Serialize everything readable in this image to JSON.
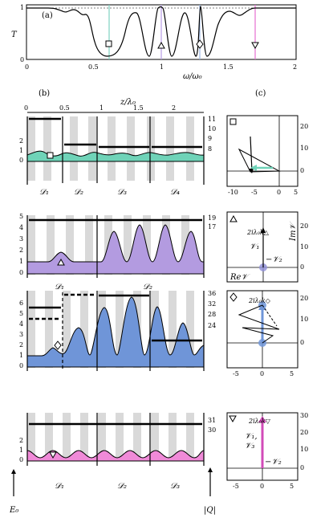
{
  "panel_a": {
    "label": "(a)",
    "ylabel": "T",
    "xlabel": "ω/ω₀",
    "y_ticks": [
      "0",
      "1"
    ],
    "x_ticks": [
      "0",
      "0.5",
      "1",
      "1.5",
      "2"
    ],
    "markers": [
      {
        "symbol": "square",
        "omega": 0.61,
        "color": "#7fd1c0"
      },
      {
        "symbol": "triangle-up",
        "omega": 1.0,
        "color": "#b79ce6"
      },
      {
        "symbol": "diamond",
        "omega": 1.23,
        "color": "#9bb8e6"
      },
      {
        "symbol": "triangle-down",
        "omega": 1.7,
        "color": "#e66fd0"
      }
    ]
  },
  "panel_b": {
    "label": "(b)",
    "top_axis_label": "z/λ₀",
    "top_ticks": [
      "0",
      "0.5",
      "1",
      "1.5",
      "2"
    ],
    "rows": [
      {
        "left_ticks": [
          "0",
          "1",
          "2"
        ],
        "right_ticks": [
          "8",
          "9",
          "10",
          "11"
        ],
        "segments": [
          "𝒟₁",
          "𝒟₂",
          "𝒟₃",
          "𝒟₄"
        ],
        "color": "#6fd3b8"
      },
      {
        "left_ticks": [
          "0",
          "1",
          "2",
          "3",
          "4",
          "5"
        ],
        "right_ticks": [
          "17",
          "19"
        ],
        "segments": [
          "𝒟₁",
          "𝒟₂"
        ],
        "color": "#b39be0"
      },
      {
        "left_ticks": [
          "0",
          "1",
          "2",
          "3",
          "4",
          "5",
          "6"
        ],
        "right_ticks": [
          "24",
          "28",
          "32",
          "36"
        ],
        "segments": [],
        "color": "#6f95d8"
      },
      {
        "left_ticks": [
          "0",
          "1",
          "2"
        ],
        "right_ticks": [
          "30",
          "31"
        ],
        "segments": [
          "𝒟₁",
          "𝒟₂",
          "𝒟₃"
        ],
        "color": "#f08ad8"
      }
    ],
    "bottom_left": "E₀",
    "bottom_right": "|Q|"
  },
  "panel_c": {
    "label": "(c)",
    "rows": [
      {
        "x_ticks": [
          "-10",
          "-5",
          "0",
          "5"
        ],
        "y_ticks": [
          "0",
          "10",
          "20"
        ]
      },
      {
        "y_ticks": [
          "0",
          "10",
          "20"
        ],
        "annotations": {
          "top": "2iλ₀k△",
          "v1": "𝒱₁",
          "v2": "−𝒱₂",
          "re": "Re𝒱",
          "im": "Im𝒱"
        }
      },
      {
        "x_ticks": [
          "-5",
          "0",
          "5"
        ],
        "y_ticks": [
          "0",
          "10",
          "20"
        ],
        "annotations": {
          "top": "2iλ₀k◇"
        }
      },
      {
        "x_ticks": [
          "-5",
          "0",
          "5"
        ],
        "y_ticks": [
          "0",
          "10",
          "20",
          "30"
        ],
        "annotations": {
          "top": "2iλ₀k▽",
          "v1": "𝒱₁,",
          "v3": "𝒱₃",
          "v2": "−𝒱₂"
        }
      }
    ]
  }
}
